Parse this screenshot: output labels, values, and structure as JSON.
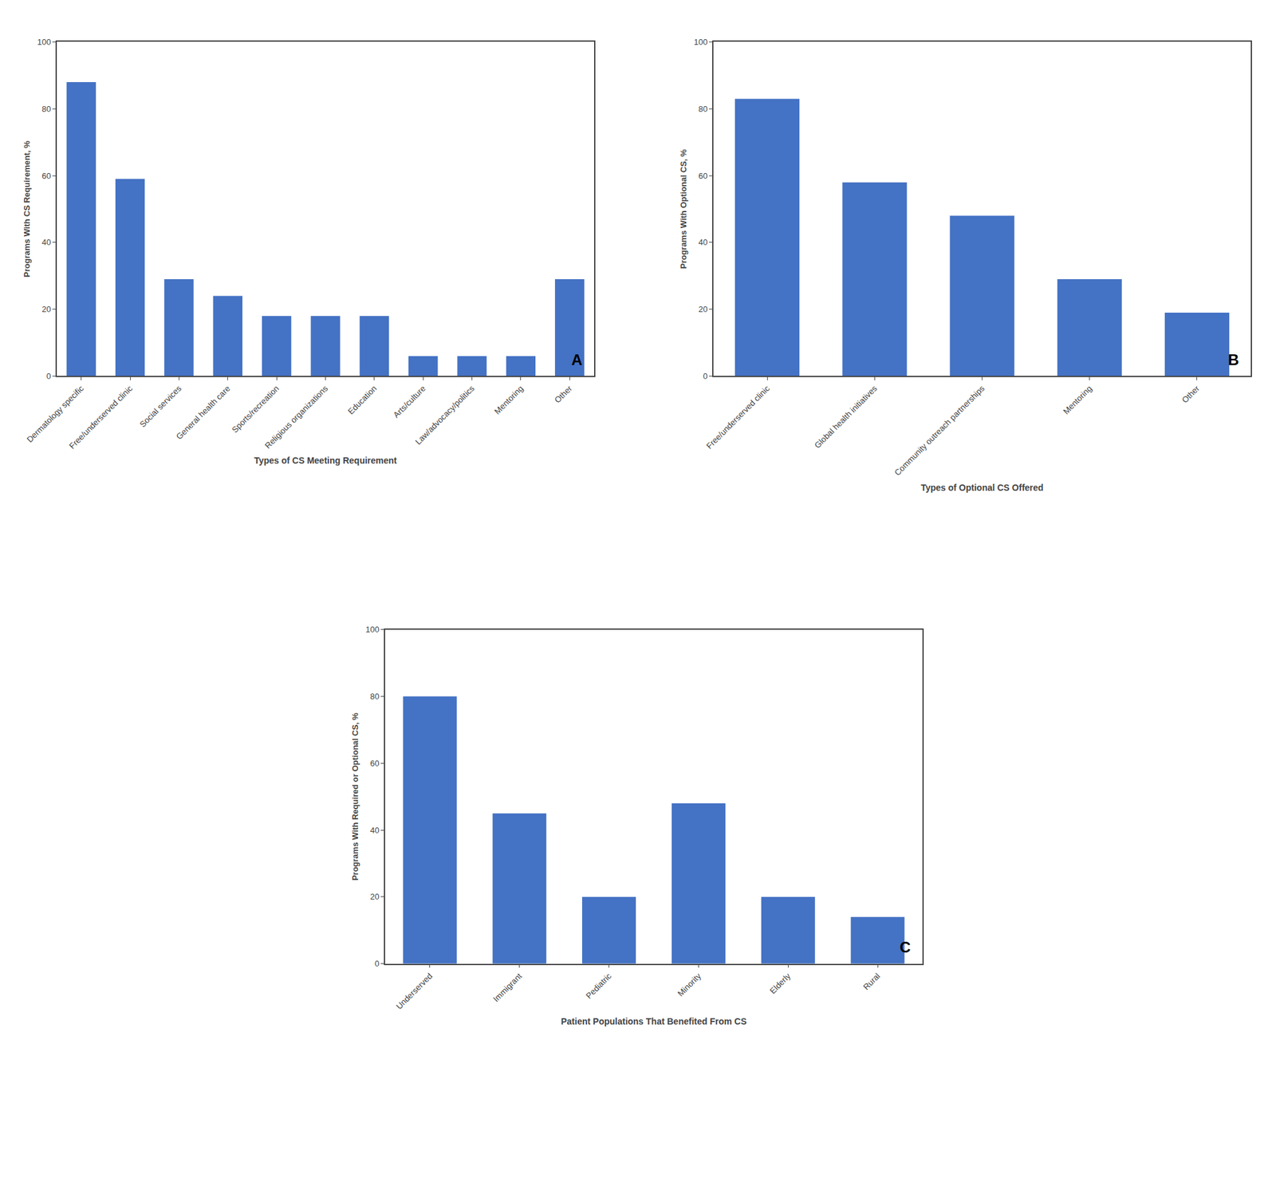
{
  "chart_data": [
    {
      "type": "bar",
      "categories": [
        "Dermatology specific",
        "Free/underserved clinic",
        "Social services",
        "General health care",
        "Sports/recreation",
        "Religious organizations",
        "Education",
        "Arts/culture",
        "Law/advocacy/politics",
        "Mentoring",
        "Other"
      ],
      "values": [
        88,
        59,
        29,
        24,
        18,
        18,
        18,
        6,
        6,
        6,
        29
      ],
      "color": "#4472C4",
      "xlabel": "Types of CS Meeting Requirement",
      "ylabel": "Programs With CS Requirement, %",
      "annotations": [
        "A"
      ],
      "ylim": [
        0,
        100
      ],
      "yticks": [
        0,
        20,
        40,
        60,
        80,
        100
      ],
      "grid": false
    },
    {
      "type": "bar",
      "categories": [
        "Free/underserved clinic",
        "Global health initiatives",
        "Community outreach partnerships",
        "Mentoring",
        "Other"
      ],
      "values": [
        83,
        58,
        48,
        29,
        19
      ],
      "color": "#4472C4",
      "xlabel": "Types of Optional CS Offered",
      "ylabel": "Programs With Optional CS, %",
      "annotations": [
        "B"
      ],
      "ylim": [
        0,
        100
      ],
      "yticks": [
        0,
        20,
        40,
        60,
        80,
        100
      ],
      "grid": false
    },
    {
      "type": "bar",
      "categories": [
        "Underserved",
        "Immigrant",
        "Pediatric",
        "Minority",
        "Elderly",
        "Rural"
      ],
      "values": [
        80,
        45,
        20,
        48,
        20,
        14
      ],
      "color": "#4472C4",
      "xlabel": "Patient Populations That Benefited From CS",
      "ylabel": "Programs With Required or Optional CS, %",
      "annotations": [
        "C"
      ],
      "ylim": [
        0,
        100
      ],
      "yticks": [
        0,
        20,
        40,
        60,
        80,
        100
      ],
      "grid": false
    }
  ]
}
